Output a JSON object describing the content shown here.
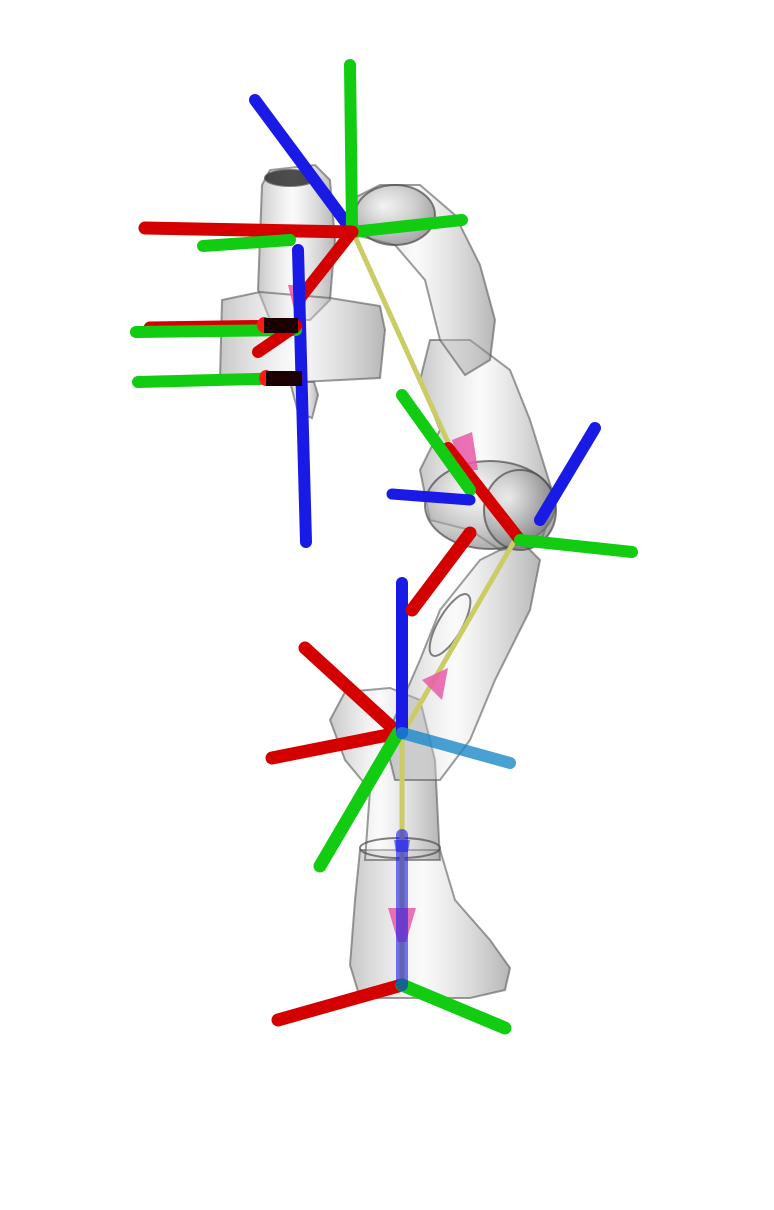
{
  "scene": {
    "background": "#ffffff",
    "colors": {
      "x_axis": "#d40000",
      "y_axis": "#11cc11",
      "z_axis": "#1a1ae6",
      "link_body": "#b8b8b8",
      "link_edge": "#5a5a5a",
      "joint_connector": "#cccc66",
      "joint_marker": "#e85aa8"
    }
  }
}
